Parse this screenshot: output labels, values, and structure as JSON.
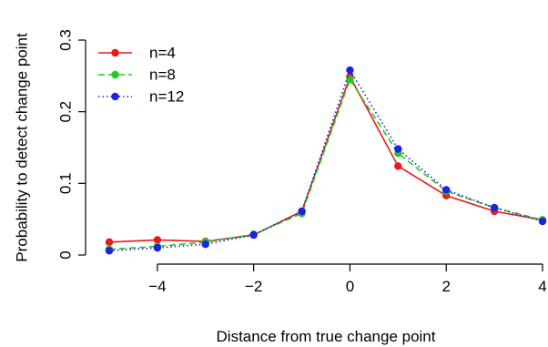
{
  "chart_data": {
    "type": "line",
    "title": "",
    "xlabel": "Distance from true change point",
    "ylabel": "Probability to detect change point",
    "xlim": [
      -5,
      4
    ],
    "ylim": [
      0,
      0.3
    ],
    "x_ticks": [
      -4,
      -2,
      0,
      2,
      4
    ],
    "x_tick_labels": [
      "−4",
      "−2",
      "0",
      "2",
      "4"
    ],
    "y_ticks": [
      0,
      0.1,
      0.2,
      0.3
    ],
    "y_tick_labels": [
      "0",
      "0.1",
      "0.2",
      "0.3"
    ],
    "grid": false,
    "legend_position": "top-left",
    "x": [
      -5,
      -4,
      -3,
      -2,
      -1,
      0,
      1,
      2,
      3,
      4
    ],
    "series": [
      {
        "name": "n=4",
        "color": "#e8191c",
        "line_style": "solid",
        "values": [
          0.018,
          0.021,
          0.019,
          0.028,
          0.061,
          0.249,
          0.124,
          0.083,
          0.061,
          0.049
        ]
      },
      {
        "name": "n=8",
        "color": "#1fcc1f",
        "line_style": "dashed",
        "values": [
          0.008,
          0.012,
          0.018,
          0.029,
          0.058,
          0.245,
          0.142,
          0.089,
          0.066,
          0.049
        ]
      },
      {
        "name": "n=12",
        "color": "#1f1fe6",
        "line_style": "dotted",
        "values": [
          0.006,
          0.01,
          0.015,
          0.028,
          0.061,
          0.258,
          0.148,
          0.091,
          0.066,
          0.047
        ]
      }
    ]
  }
}
